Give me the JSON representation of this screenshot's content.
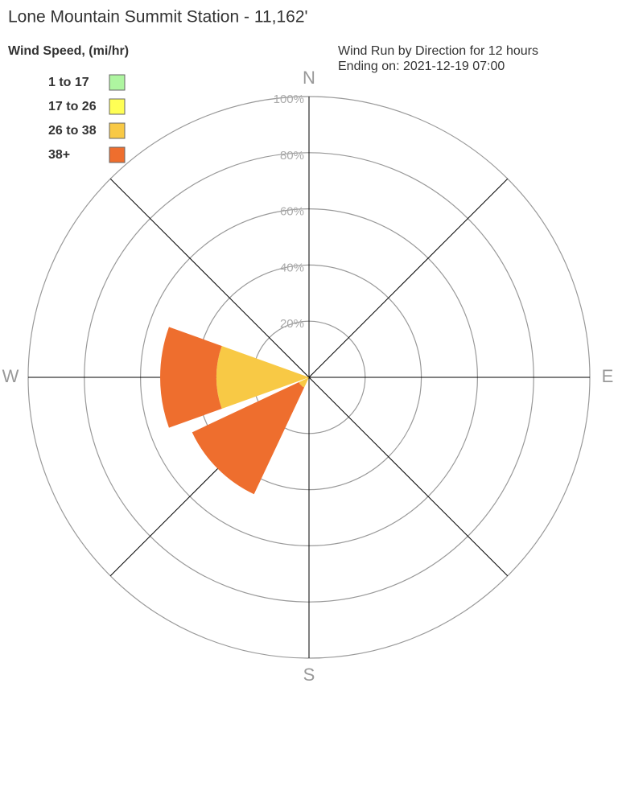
{
  "chart_data": {
    "type": "windrose",
    "title": "Lone Mountain Summit Station - 11,162'",
    "legend_title": "Wind Speed, (mi/hr)",
    "subtitle": [
      "Wind Run by Direction for 12 hours",
      "Ending on: 2021-12-19 07:00"
    ],
    "categories": [
      "N",
      null,
      "E",
      null,
      "S",
      null,
      "W",
      null
    ],
    "series": [
      {
        "name": "1 to 17",
        "color": "#aef5a0",
        "values": [
          0,
          0,
          0,
          0,
          0,
          0,
          0,
          0
        ]
      },
      {
        "name": "17 to 26",
        "color": "#ffff55",
        "values": [
          0,
          0,
          0,
          0,
          0,
          0,
          0,
          0
        ]
      },
      {
        "name": "26 to 38",
        "color": "#f8c945",
        "values": [
          0,
          0,
          0,
          0,
          0,
          4,
          33,
          0
        ]
      },
      {
        "name": "38+",
        "color": "#ee6e2e",
        "values": [
          0,
          0,
          0,
          0,
          0,
          42,
          20,
          0
        ]
      }
    ],
    "rlim": [
      0,
      100
    ],
    "rticks": [
      {
        "value": 20,
        "label": "20%"
      },
      {
        "value": 40,
        "label": "40%"
      },
      {
        "value": 60,
        "label": "60%"
      },
      {
        "value": 80,
        "label": "80%"
      },
      {
        "value": 100,
        "label": "100%"
      }
    ]
  }
}
